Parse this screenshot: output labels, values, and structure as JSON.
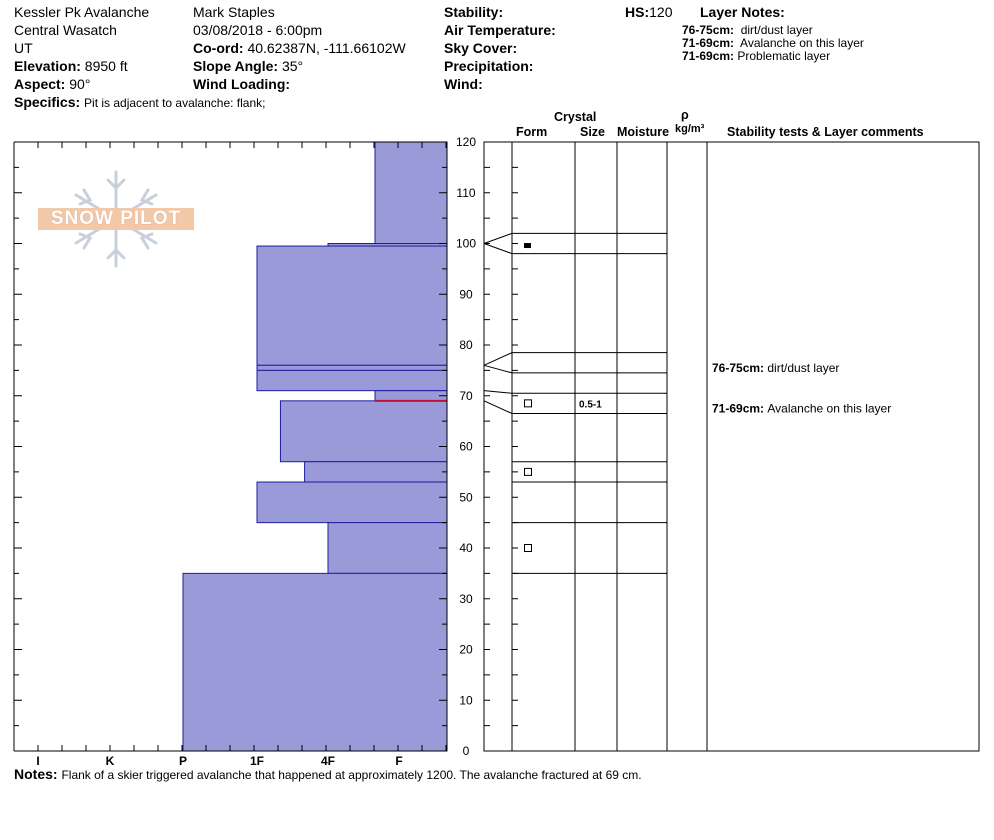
{
  "header": {
    "location": "Kessler Pk Avalanche",
    "range": "Central Wasatch",
    "state": "UT",
    "observer": "Mark Staples",
    "datetime": "03/08/2018 - 6:00pm",
    "elevation_label": "Elevation:",
    "elevation": "8950 ft",
    "aspect_label": "Aspect:",
    "aspect": "90°",
    "coord_label": "Co-ord:",
    "coord": "40.62387N, -111.66102W",
    "slope_label": "Slope Angle:",
    "slope": "35°",
    "wind_loading_label": "Wind Loading:",
    "stability_label": "Stability:",
    "air_temp_label": "Air Temperature:",
    "sky_label": "Sky Cover:",
    "precip_label": "Precipitation:",
    "wind_label": "Wind:",
    "hs_label": "HS:",
    "hs": "120",
    "layer_notes_label": "Layer Notes:",
    "specifics_label": "Specifics:",
    "specifics": "Pit is adjacent to avalanche: flank;"
  },
  "layer_notes": [
    {
      "range": "76-75cm:",
      "text": "dirt/dust layer"
    },
    {
      "range": "71-69cm:",
      "text": "Avalanche on this layer"
    },
    {
      "range": "71-69cm:",
      "text": "Problematic layer"
    }
  ],
  "columns": {
    "crystal": "Crystal",
    "form": "Form",
    "size": "Size",
    "moisture": "Moisture",
    "rho": "ρ",
    "density_unit": "kg/m³",
    "comments": "Stability tests & Layer comments"
  },
  "logo": {
    "text": "SNOW PILOT",
    "icon": "snowflake-icon"
  },
  "notes": {
    "label": "Notes:",
    "text": "Flank of a skier triggered avalanche that happened at approximately 1200. The avalanche fractured at 69 cm."
  },
  "chart_data": {
    "type": "bar",
    "title": "",
    "ylabel": "",
    "ylim": [
      0,
      120
    ],
    "y_ticks": [
      0,
      10,
      20,
      30,
      40,
      50,
      60,
      70,
      80,
      90,
      100,
      110,
      120
    ],
    "hardness_scale": [
      "I",
      "K",
      "P",
      "1F",
      "4F",
      "F"
    ],
    "layers": [
      {
        "top": 120,
        "bottom": 100,
        "hardness": "F"
      },
      {
        "top": 100,
        "bottom": 99.5,
        "hardness": "4F"
      },
      {
        "top": 99.5,
        "bottom": 76,
        "hardness": "1F"
      },
      {
        "top": 76,
        "bottom": 75,
        "hardness": "1F"
      },
      {
        "top": 75,
        "bottom": 71,
        "hardness": "1F"
      },
      {
        "top": 71,
        "bottom": 69,
        "hardness": "F"
      },
      {
        "top": 69,
        "bottom": 57,
        "hardness": "1F+"
      },
      {
        "top": 57,
        "bottom": 53,
        "hardness": "4F-"
      },
      {
        "top": 53,
        "bottom": 45,
        "hardness": "1F"
      },
      {
        "top": 45,
        "bottom": 35,
        "hardness": "4F"
      },
      {
        "top": 35,
        "bottom": 0,
        "hardness": "P"
      }
    ],
    "hardness_values": {
      "I": 0,
      "K": 1,
      "P": 2,
      "1F": 3,
      "1F+": 3.33,
      "4F-": 3.67,
      "4F": 4,
      "F": 5
    },
    "critical_layer_cm": 69,
    "stratigraphy_boundaries": [
      120,
      102,
      98,
      78.5,
      74.5,
      70.5,
      66.5,
      57,
      53,
      45,
      35
    ],
    "crystals": [
      {
        "depth": 99.5,
        "form": "filled-square",
        "size": ""
      },
      {
        "depth": 68.5,
        "form": "open-square",
        "size": "0.5-1"
      },
      {
        "depth": 55,
        "form": "open-square",
        "size": ""
      },
      {
        "depth": 40,
        "form": "open-square",
        "size": ""
      }
    ],
    "comments": [
      {
        "depth": 75.5,
        "range": "76-75cm:",
        "text": "dirt/dust layer"
      },
      {
        "depth": 67.5,
        "range": "71-69cm:",
        "text": "Avalanche on this layer"
      }
    ]
  }
}
